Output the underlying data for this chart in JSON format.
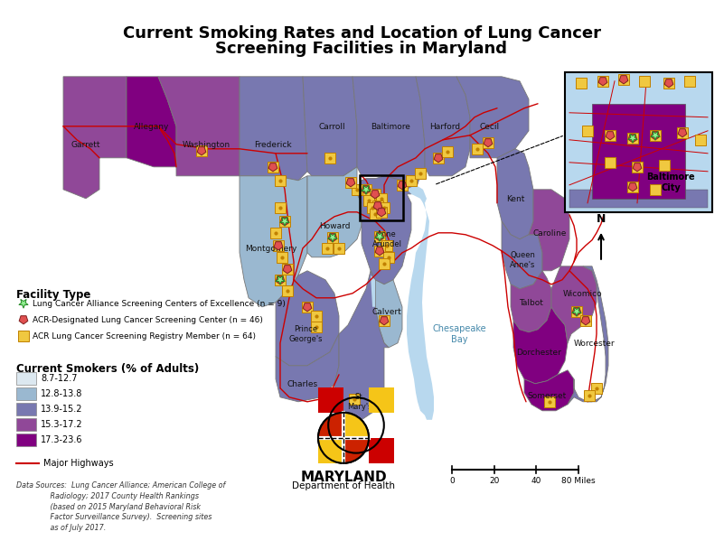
{
  "title_line1": "Current Smoking Rates and Location of Lung Cancer",
  "title_line2": "Screening Facilities in Maryland",
  "title_fontsize": 13,
  "title_fontweight": "bold",
  "background_color": "#ffffff",
  "water_color": "#b8d8ee",
  "smoker_ranges": [
    "8.7-12.7",
    "12.8-13.8",
    "13.9-15.2",
    "15.3-17.2",
    "17.3-23.6"
  ],
  "smoker_colors": [
    "#dce8f0",
    "#9ab8d0",
    "#7878b0",
    "#904898",
    "#800080"
  ],
  "facility_labels": [
    "Lung Cancer Alliance Screening Centers of Excellence (n = 9)",
    "ACR-Designated Lung Cancer Screening Center (n = 46)",
    "ACR Lung Cancer Screening Registry Member (n = 64)"
  ],
  "facility_star_color": "#90ee90",
  "facility_star_edge": "#228822",
  "facility_acr_color": "#e05050",
  "facility_acr_edge": "#802020",
  "facility_reg_color": "#f0c840",
  "facility_reg_edge": "#c08000",
  "highway_color": "#cc0000",
  "county_edge_color": "#777777",
  "county_label_color": "#111111",
  "legend_highway": "Major Highways",
  "data_sources_text": "Data Sources:  Lung Cancer Alliance; American College of\n               Radiology; 2017 County Health Rankings\n               (based on 2015 Maryland Behavioral Risk\n               Factor Surveillance Survey).  Screening sites\n               as of July 2017.",
  "inset_label": "Baltimore\nCity",
  "maryland_text": "MARYLAND",
  "dept_text": "Department of Health"
}
